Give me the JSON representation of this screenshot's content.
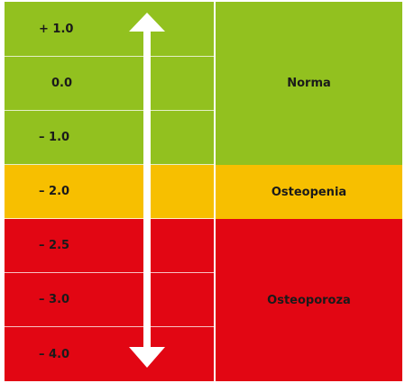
{
  "rows": [
    {
      "label": "+ 1.0",
      "zone": "green"
    },
    {
      "label": "0.0",
      "zone": "green"
    },
    {
      "label": "– 1.0",
      "zone": "green"
    },
    {
      "label": "– 2.0",
      "zone": "yellow"
    },
    {
      "label": "– 2.5",
      "zone": "red"
    },
    {
      "label": "– 3.0",
      "zone": "red"
    },
    {
      "label": "– 4.0",
      "zone": "red"
    }
  ],
  "categories": {
    "norma": "Norma",
    "osteopenia": "Osteopenia",
    "osteoporoza": "Osteoporoza"
  },
  "colors": {
    "green": "#92c11f",
    "yellow": "#f7bf00",
    "red": "#e20613",
    "arrow": "#ffffff"
  },
  "arrow_icon": "double-headed-vertical-arrow"
}
